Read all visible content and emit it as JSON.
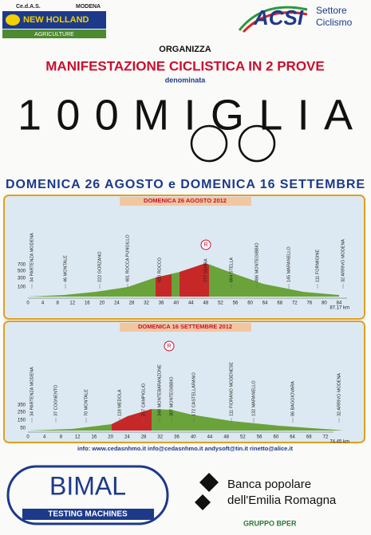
{
  "header": {
    "cedas": "Ce.d.A.S.",
    "city": "MODENA",
    "brand": "NEW HOLLAND",
    "brand_sub": "AGRICULTURE",
    "acsi": "ACSI",
    "acsi_sub1": "Settore",
    "acsi_sub2": "Ciclismo"
  },
  "intro": {
    "organizza": "ORGANIZZA",
    "headline": "MANIFESTAZIONE CICLISTICA IN 2 PROVE",
    "denominata": "denominata",
    "name": "100MIGLIA",
    "dates": "DOMENICA 26 AGOSTO e DOMENICA 16 SETTEMBRE"
  },
  "profiles": [
    {
      "title": "DOMENICA 26 AGOSTO 2012",
      "yticks": [
        "700",
        "500",
        "300",
        "100"
      ],
      "xticks": [
        "0",
        "4",
        "8",
        "12",
        "16",
        "20",
        "24",
        "28",
        "32",
        "36",
        "40",
        "44",
        "48",
        "52",
        "56",
        "60",
        "64",
        "68",
        "72",
        "76",
        "80",
        "84"
      ],
      "distance": "87.17 km",
      "marker": "R",
      "points": [
        "34 PARTENZA MODENA",
        "46 MONTALE",
        "222 GORZANO",
        "481 ROCCA PUNGILLO",
        "620 ROCCO",
        "777 SERRA",
        "664 STELLA",
        "486 MONTEGIBBIO",
        "145 MARANELLO",
        "111 FORMIGINE",
        "32 ARRIVO MODENA"
      ]
    },
    {
      "title": "DOMENICA 16 SETTEMBRE 2012",
      "yticks": [
        "350",
        "250",
        "150",
        "50"
      ],
      "xticks": [
        "0",
        "4",
        "8",
        "12",
        "16",
        "20",
        "24",
        "28",
        "32",
        "36",
        "40",
        "44",
        "48",
        "52",
        "56",
        "60",
        "64",
        "68",
        "72"
      ],
      "distance": "74.45 km",
      "marker": "R",
      "points": [
        "34 PARTENZA MODENA",
        "37 COGNENTO",
        "70 MONTALE",
        "118 MEDOLA",
        "257 CAMPIGLIO",
        "348 MONTEBARANZONE",
        "307 MONTEGIBBIO",
        "172 CASTELLARANO",
        "111 FIORANO MODENESE",
        "132 MARANELLO",
        "86 BAGGIOVARA",
        "32 ARRIVO MODENA"
      ]
    }
  ],
  "contacts": "info: www.cedasnhmo.it   info@cedasnhmo.it   andysoft@tin.it   rinetto@alice.it",
  "footer": {
    "bimal": "BIMAL",
    "bimal_sub": "TESTING MACHINES",
    "bank1": "Banca popolare",
    "bank2": "dell'Emilia Romagna",
    "group": "GRUPPO BPER"
  }
}
